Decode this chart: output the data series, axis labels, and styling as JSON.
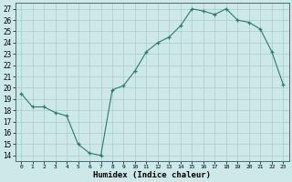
{
  "x": [
    0,
    1,
    2,
    3,
    4,
    5,
    6,
    7,
    8,
    9,
    10,
    11,
    12,
    13,
    14,
    15,
    16,
    17,
    18,
    19,
    20,
    21,
    22,
    23
  ],
  "y": [
    19.5,
    18.3,
    18.3,
    17.8,
    17.5,
    15.0,
    14.2,
    14.0,
    19.8,
    20.2,
    21.5,
    23.2,
    24.0,
    24.5,
    25.5,
    27.0,
    26.8,
    26.5,
    27.0,
    26.0,
    25.8,
    25.2,
    23.2,
    20.3
  ],
  "xlabel": "Humidex (Indice chaleur)",
  "xlim": [
    -0.5,
    23.5
  ],
  "ylim": [
    13.5,
    27.5
  ],
  "yticks": [
    14,
    15,
    16,
    17,
    18,
    19,
    20,
    21,
    22,
    23,
    24,
    25,
    26,
    27
  ],
  "xticks": [
    0,
    1,
    2,
    3,
    4,
    5,
    6,
    7,
    8,
    9,
    10,
    11,
    12,
    13,
    14,
    15,
    16,
    17,
    18,
    19,
    20,
    21,
    22,
    23
  ],
  "line_color": "#2d7a6e",
  "marker": "+",
  "bg_color": "#cce8e8",
  "grid_color": "#aacccc"
}
